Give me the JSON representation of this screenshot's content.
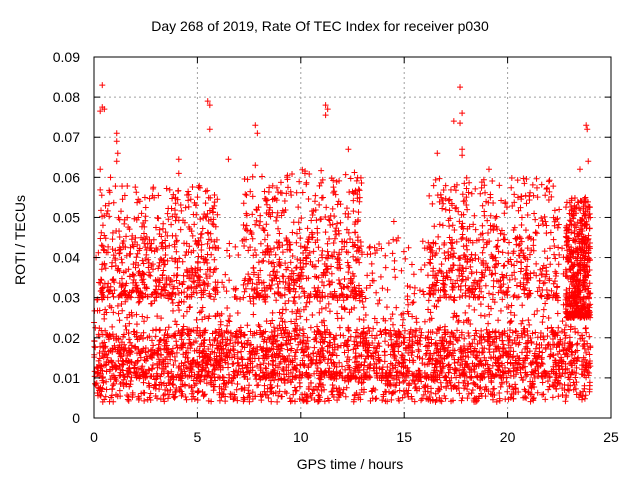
{
  "chart_data": {
    "type": "scatter",
    "title": "Day 268 of 2019, Rate Of TEC Index for receiver p030",
    "xlabel": "GPS time / hours",
    "ylabel": "ROTI / TECUs",
    "xlim": [
      0,
      25
    ],
    "ylim": [
      0,
      0.09
    ],
    "xticks": [
      "0",
      "5",
      "10",
      "15",
      "20",
      "25"
    ],
    "yticks": [
      "0",
      "0.01",
      "0.02",
      "0.03",
      "0.04",
      "0.05",
      "0.06",
      "0.07",
      "0.08",
      "0.09"
    ],
    "grid": true,
    "marker": "+",
    "color": "#ff0000",
    "series": [
      {
        "points": [
          [
            0.4,
            0.083
          ],
          [
            0.4,
            0.0775
          ],
          [
            0.5,
            0.077
          ],
          [
            0.3,
            0.0765
          ],
          [
            1.1,
            0.071
          ],
          [
            1.1,
            0.069
          ],
          [
            1.15,
            0.066
          ],
          [
            1.1,
            0.064
          ],
          [
            0.8,
            0.06
          ],
          [
            0.3,
            0.062
          ],
          [
            5.5,
            0.079
          ],
          [
            5.6,
            0.078
          ],
          [
            5.6,
            0.072
          ],
          [
            7.8,
            0.073
          ],
          [
            7.9,
            0.071
          ],
          [
            7.8,
            0.063
          ],
          [
            6.5,
            0.0645
          ],
          [
            11.2,
            0.078
          ],
          [
            11.3,
            0.077
          ],
          [
            11.2,
            0.0755
          ],
          [
            17.7,
            0.0825
          ],
          [
            17.8,
            0.076
          ],
          [
            17.7,
            0.0735
          ],
          [
            17.4,
            0.074
          ],
          [
            17.8,
            0.067
          ],
          [
            17.8,
            0.0655
          ],
          [
            23.8,
            0.073
          ],
          [
            23.85,
            0.072
          ],
          [
            23.9,
            0.064
          ],
          [
            23.5,
            0.062
          ],
          [
            4.1,
            0.0645
          ],
          [
            4.1,
            0.061
          ],
          [
            5.4,
            0.0565
          ],
          [
            10.2,
            0.061
          ],
          [
            12.3,
            0.067
          ],
          [
            16.6,
            0.066
          ],
          [
            19.1,
            0.062
          ],
          [
            22.0,
            0.059
          ],
          [
            19.6,
            0.058
          ],
          [
            20.5,
            0.055
          ],
          [
            2.3,
            0.051
          ],
          [
            14.5,
            0.049
          ],
          [
            9.3,
            0.056
          ],
          [
            21.5,
            0.048
          ],
          [
            0.1,
            0.04
          ],
          [
            24.0,
            0.05
          ]
        ],
        "dense_bands": [
          {
            "x": [
              0.0,
              24.0
            ],
            "y": [
              0.004,
              0.022
            ]
          },
          {
            "x": [
              0.0,
              24.0
            ],
            "y": [
              0.01,
              0.045
            ]
          },
          {
            "x": [
              0.3,
              6.0
            ],
            "y": [
              0.03,
              0.058
            ]
          },
          {
            "x": [
              7.2,
              13.0
            ],
            "y": [
              0.03,
              0.062
            ]
          },
          {
            "x": [
              16.2,
              22.5
            ],
            "y": [
              0.03,
              0.06
            ]
          },
          {
            "x": [
              22.8,
              24.0
            ],
            "y": [
              0.025,
              0.055
            ]
          }
        ]
      }
    ]
  }
}
